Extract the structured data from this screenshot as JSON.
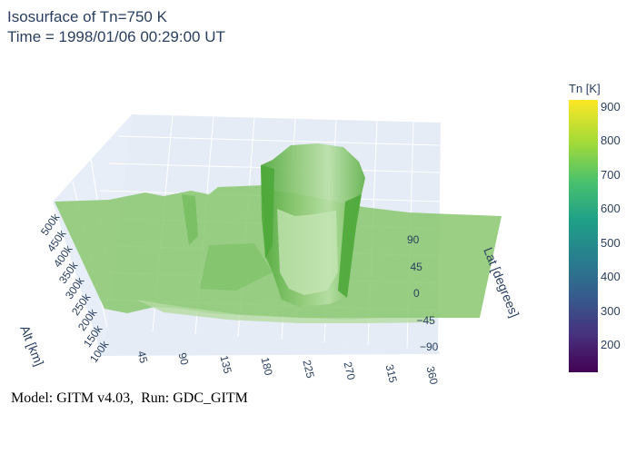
{
  "title_lines": [
    "Isosurface of Tn=750 K",
    "Time = 1998/01/06 00:29:00 UT"
  ],
  "footer": "Model: GITM v4.03,  Run: GDC_GITM",
  "chart_data": {
    "type": "isosurface",
    "isovalue": 750,
    "xlabel": "",
    "ylabel": "Lat [degrees]",
    "zlabel": "Alt [km]",
    "x_ticks": [
      "45",
      "90",
      "135",
      "180",
      "225",
      "270",
      "315",
      "360"
    ],
    "y_ticks": [
      "90",
      "45",
      "0",
      "−45",
      "−90"
    ],
    "z_ticks": [
      "100k",
      "150k",
      "200k",
      "250k",
      "300k",
      "350k",
      "400k",
      "450k",
      "500k"
    ],
    "xlim": [
      0,
      360
    ],
    "ylim": [
      -90,
      90
    ],
    "zlim": [
      100,
      500
    ],
    "colorbar": {
      "title": "Tn [K]",
      "ticks": [
        "900",
        "800",
        "700",
        "600",
        "500",
        "400",
        "300",
        "200"
      ],
      "range": [
        120,
        920
      ],
      "colorscale": "Viridis"
    },
    "surface_color": "#8cc873",
    "surface_dark_color": "#5fb147",
    "background_color": "#e5ecf6"
  }
}
